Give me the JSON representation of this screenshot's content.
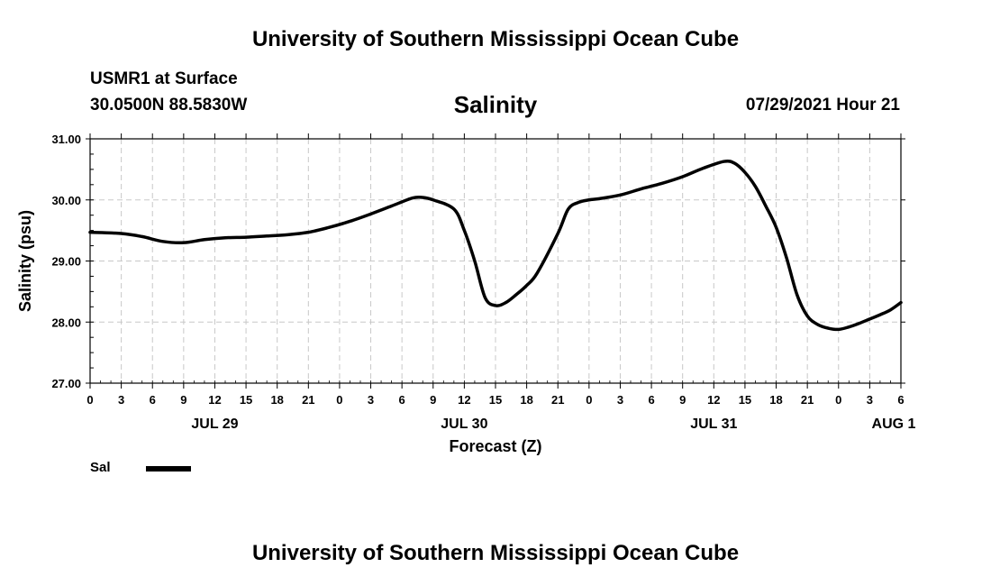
{
  "header": {
    "title": "University of Southern Mississippi Ocean Cube",
    "station": "USMR1 at Surface",
    "coords": "30.0500N  88.5830W",
    "parameter": "Salinity",
    "datestamp": "07/29/2021 Hour 21"
  },
  "footer": {
    "title": "University of Southern Mississippi Ocean Cube"
  },
  "legend": {
    "label": "Sal",
    "color": "#000000"
  },
  "chart_data": {
    "type": "line",
    "title": "Salinity",
    "xlabel": "Forecast (Z)",
    "ylabel": "Salinity (psu)",
    "ylim": [
      27.0,
      31.0
    ],
    "yticks": [
      "27.00",
      "28.00",
      "29.00",
      "30.00",
      "31.00"
    ],
    "xlim": [
      0,
      78
    ],
    "xtick_step": 3,
    "xtick_labels": [
      "0",
      "3",
      "6",
      "9",
      "12",
      "15",
      "18",
      "21",
      "0",
      "3",
      "6",
      "9",
      "12",
      "15",
      "18",
      "21",
      "0",
      "3",
      "6",
      "9",
      "12",
      "15",
      "18",
      "21",
      "0",
      "3",
      "6"
    ],
    "day_labels": [
      {
        "label": "JUL 29",
        "x": 12
      },
      {
        "label": "JUL 30",
        "x": 36
      },
      {
        "label": "JUL 31",
        "x": 60
      },
      {
        "label": "AUG 1",
        "x": 78
      }
    ],
    "grid": true,
    "series": [
      {
        "name": "Sal",
        "x": [
          0,
          3,
          5,
          7,
          9,
          11,
          13,
          15,
          17,
          19,
          21,
          23,
          25,
          27,
          29,
          31,
          32,
          33,
          35,
          36,
          37,
          38,
          39,
          40,
          41,
          42,
          43,
          45,
          46,
          47,
          48,
          49,
          51,
          53,
          55,
          57,
          59,
          61,
          62,
          63,
          64,
          65,
          66,
          67,
          68,
          69,
          70,
          71,
          72,
          73,
          74,
          75,
          76,
          77,
          78
        ],
        "values": [
          29.47,
          29.45,
          29.4,
          29.32,
          29.3,
          29.35,
          29.38,
          29.39,
          29.41,
          29.43,
          29.47,
          29.55,
          29.65,
          29.77,
          29.9,
          30.03,
          30.04,
          30.0,
          29.85,
          29.5,
          29.0,
          28.4,
          28.27,
          28.32,
          28.45,
          28.6,
          28.8,
          29.45,
          29.85,
          29.96,
          30.0,
          30.02,
          30.08,
          30.18,
          30.27,
          30.38,
          30.52,
          30.63,
          30.6,
          30.45,
          30.22,
          29.9,
          29.55,
          29.05,
          28.45,
          28.1,
          27.96,
          27.9,
          27.88,
          27.92,
          27.98,
          28.05,
          28.12,
          28.2,
          28.32
        ]
      }
    ]
  }
}
